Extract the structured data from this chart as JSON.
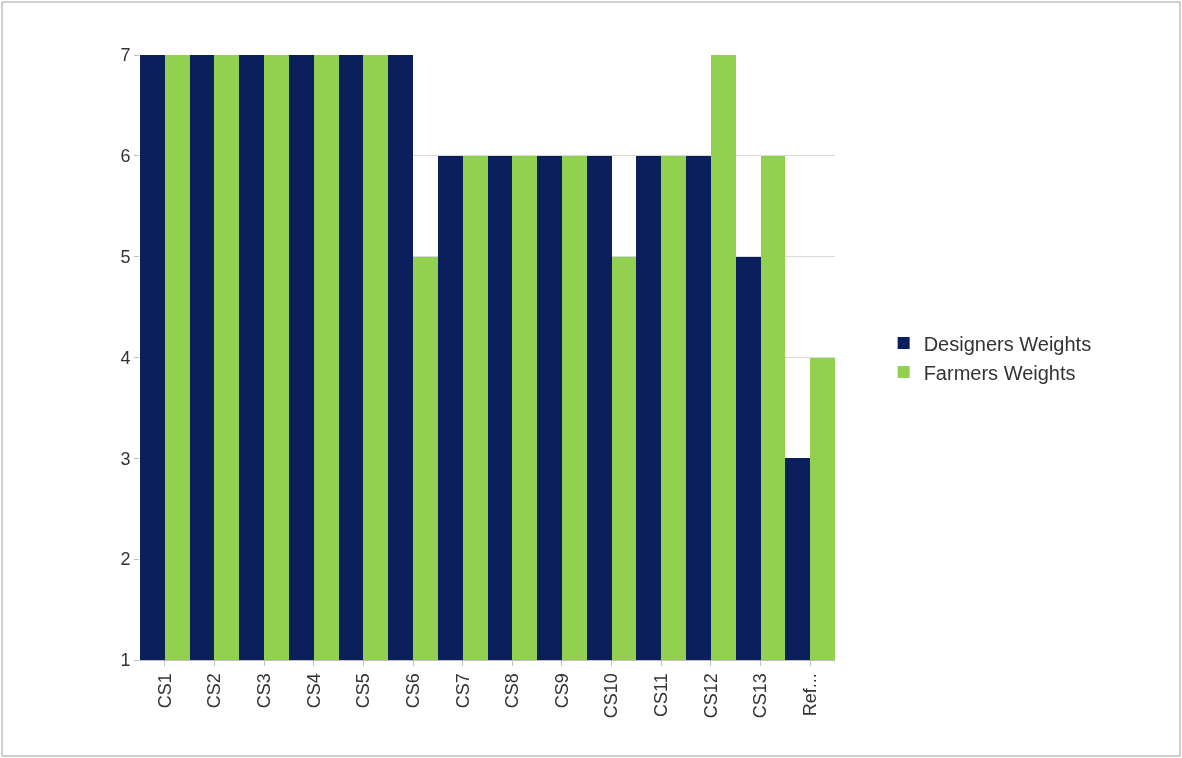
{
  "chart_data": {
    "type": "bar",
    "categories": [
      "CS1",
      "CS2",
      "CS3",
      "CS4",
      "CS5",
      "CS6",
      "CS7",
      "CS8",
      "CS9",
      "CS10",
      "CS11",
      "CS12",
      "CS13",
      "Ref..."
    ],
    "series": [
      {
        "name": "Designers Weights",
        "color": "#0b1f5c",
        "values": [
          7,
          7,
          7,
          7,
          7,
          7,
          6,
          6,
          6,
          6,
          6,
          6,
          5,
          3
        ]
      },
      {
        "name": "Farmers Weights",
        "color": "#92d050",
        "values": [
          7,
          7,
          7,
          7,
          7,
          5,
          6,
          6,
          6,
          5,
          6,
          7,
          6,
          4
        ]
      }
    ],
    "ylim": [
      1,
      7
    ],
    "yticks": [
      1,
      2,
      3,
      4,
      5,
      6,
      7
    ],
    "grid": "y",
    "legend": "right"
  }
}
